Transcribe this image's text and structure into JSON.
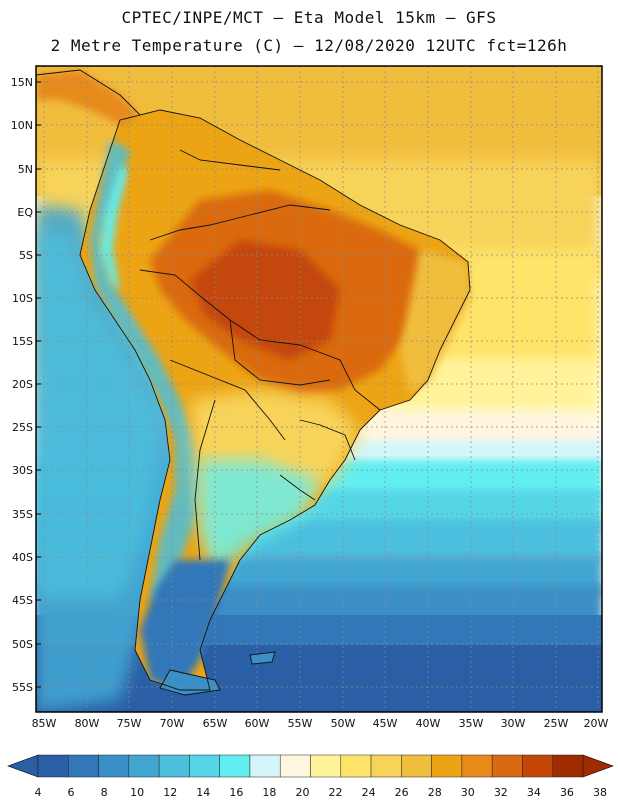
{
  "header": {
    "line1": "CPTEC/INPE/MCT –  Eta Model 15km – GFS",
    "line2": "2 Metre Temperature (C) – 12/08/2020 12UTC fct=126h"
  },
  "axes": {
    "lat_labels": [
      "15N",
      "10N",
      "5N",
      "EQ",
      "5S",
      "10S",
      "15S",
      "20S",
      "25S",
      "30S",
      "35S",
      "40S",
      "45S",
      "50S",
      "55S"
    ],
    "lon_labels": [
      "85W",
      "80W",
      "75W",
      "70W",
      "65W",
      "60W",
      "55W",
      "50W",
      "45W",
      "40W",
      "35W",
      "30W",
      "25W",
      "20W"
    ]
  },
  "colorbar": {
    "ticks": [
      "4",
      "6",
      "8",
      "10",
      "12",
      "14",
      "16",
      "18",
      "20",
      "22",
      "24",
      "26",
      "28",
      "30",
      "32",
      "34",
      "36",
      "38"
    ],
    "colors": [
      "#2a5ea5",
      "#3277b8",
      "#3a8fc6",
      "#42a6d2",
      "#4cbfdd",
      "#55d6e7",
      "#62eef0",
      "#d3f6fb",
      "#fff6e0",
      "#fff49a",
      "#ffe46a",
      "#f8d35a",
      "#f1bd3d",
      "#eca414",
      "#e78a1a",
      "#da6a11",
      "#c44707",
      "#9f2c00"
    ],
    "left_arrow_color": "#2a5ea5",
    "right_arrow_color": "#9f2c00"
  }
}
